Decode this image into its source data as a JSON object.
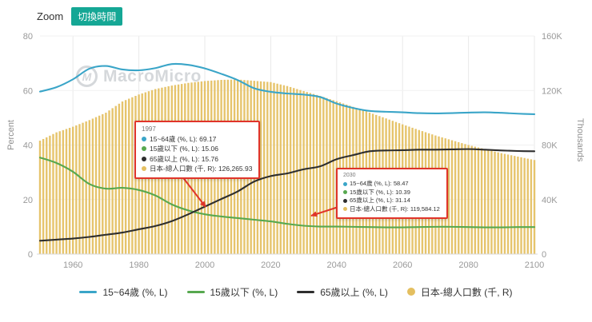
{
  "colors": {
    "accent_red": "#e0342a",
    "button_teal": "#15a795",
    "axis_text": "#999999",
    "watermark_gray": "#d5d8db",
    "grid_line": "#e9e9e9"
  },
  "toolbar": {
    "zoom_label": "Zoom",
    "switch_time_label": "切換時間"
  },
  "watermark": {
    "text": "MacroMicro",
    "logo_letter": "M"
  },
  "chart_data": {
    "type": "line+bar",
    "title": "",
    "x": [
      1950,
      1955,
      1960,
      1965,
      1970,
      1975,
      1980,
      1985,
      1990,
      1995,
      2000,
      2005,
      2010,
      2015,
      2020,
      2025,
      2030,
      2035,
      2040,
      2045,
      2050,
      2055,
      2060,
      2065,
      2070,
      2075,
      2080,
      2085,
      2090,
      2095,
      2100
    ],
    "series": [
      {
        "name": "15~64歲 (%, L)",
        "type": "line",
        "axis": "left",
        "color": "#3aa5c8",
        "values": [
          59.6,
          61.2,
          64.1,
          68.0,
          69.0,
          67.7,
          67.4,
          68.2,
          69.7,
          69.4,
          68.1,
          66.1,
          63.8,
          60.8,
          59.5,
          58.9,
          58.5,
          57.6,
          55.2,
          53.6,
          52.5,
          52.2,
          52.0,
          51.7,
          51.6,
          51.7,
          51.9,
          52.0,
          51.8,
          51.5,
          51.3
        ]
      },
      {
        "name": "15歲以下 (%, L)",
        "type": "line",
        "axis": "left",
        "color": "#57a84f",
        "values": [
          35.4,
          33.4,
          30.2,
          25.7,
          24.0,
          24.3,
          23.5,
          21.5,
          18.2,
          16.0,
          14.6,
          13.8,
          13.2,
          12.6,
          12.0,
          11.1,
          10.4,
          10.1,
          10.1,
          10.0,
          9.9,
          9.8,
          9.8,
          9.9,
          10.0,
          10.0,
          9.9,
          9.8,
          9.8,
          9.9,
          9.9
        ]
      },
      {
        "name": "65歲以上 (%, L)",
        "type": "line",
        "axis": "left",
        "color": "#2e2e2e",
        "values": [
          4.9,
          5.3,
          5.7,
          6.3,
          7.1,
          7.9,
          9.1,
          10.3,
          12.1,
          14.6,
          17.4,
          20.2,
          23.0,
          26.6,
          28.6,
          29.6,
          31.1,
          32.2,
          34.8,
          36.3,
          37.7,
          38.0,
          38.1,
          38.3,
          38.3,
          38.4,
          38.5,
          38.3,
          38.0,
          37.8,
          37.7
        ]
      },
      {
        "name": "日本-總人口數 (千, R)",
        "type": "bar",
        "axis": "right",
        "color": "#e4bf60",
        "values": [
          83200,
          89276,
          93419,
          98275,
          103720,
          111940,
          117060,
          121049,
          123611,
          125570,
          126926,
          127768,
          128057,
          127095,
          126146,
          123262,
          119584,
          116000,
          112124,
          108000,
          103784,
          99500,
          95148,
          91000,
          86996,
          83500,
          80000,
          77000,
          74000,
          71500,
          69000
        ]
      }
    ],
    "left_axis": {
      "title": "Percent",
      "range": [
        0,
        80
      ],
      "ticks": [
        0,
        20,
        40,
        60,
        80
      ]
    },
    "right_axis": {
      "title": "Thousands",
      "range": [
        0,
        160000
      ],
      "ticks": [
        0,
        40000,
        80000,
        120000,
        160000
      ],
      "tick_labels": [
        "0",
        "40K",
        "80K",
        "120K",
        "160K"
      ]
    },
    "x_axis": {
      "range": [
        1950,
        2100
      ],
      "ticks": [
        1960,
        1980,
        2000,
        2020,
        2040,
        2060,
        2080,
        2100
      ]
    },
    "legend_position": "bottom",
    "grid": true
  },
  "tooltips": [
    {
      "title": "1997",
      "rows": [
        {
          "series": 0,
          "text": "15~64歲 (%, L): 69.17"
        },
        {
          "series": 1,
          "text": "15歲以下 (%, L): 15.06"
        },
        {
          "series": 2,
          "text": "65歲以上 (%, L): 15.76"
        },
        {
          "series": 3,
          "text": "日本-總人口數 (千, R): 126,265.93"
        }
      ]
    },
    {
      "title": "2030",
      "rows": [
        {
          "series": 0,
          "text": "15~64歲 (%, L): 58.47"
        },
        {
          "series": 1,
          "text": "15歲以下 (%, L): 10.39"
        },
        {
          "series": 2,
          "text": "65歲以上 (%, L): 31.14"
        },
        {
          "series": 3,
          "text": "日本-總人口數 (千, R): 119,584.12"
        }
      ]
    }
  ]
}
